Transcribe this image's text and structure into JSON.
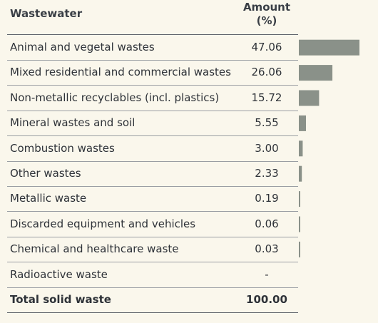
{
  "header": {
    "category_label": "Wastewater",
    "amount_label_line1": "Amount",
    "amount_label_line2": "(%)"
  },
  "chart_data": {
    "type": "bar",
    "categories": [
      "Animal and vegetal wastes",
      "Mixed residential and commercial wastes",
      "Non-metallic recyclables (incl. plastics)",
      "Mineral wastes and soil",
      "Combustion wastes",
      "Other wastes",
      "Metallic waste",
      "Discarded equipment and vehicles",
      "Chemical and healthcare waste",
      "Radioactive waste"
    ],
    "values": [
      47.06,
      26.06,
      15.72,
      5.55,
      3.0,
      2.33,
      0.19,
      0.06,
      0.03,
      null
    ],
    "value_labels": [
      "47.06",
      "26.06",
      "15.72",
      "5.55",
      "3.00",
      "2.33",
      "0.19",
      "0.06",
      "0.03",
      "-"
    ],
    "total_label": "Total solid waste",
    "total_value": "100.00",
    "bar_color": "#8a9189",
    "xlim": [
      0,
      47.06
    ]
  }
}
